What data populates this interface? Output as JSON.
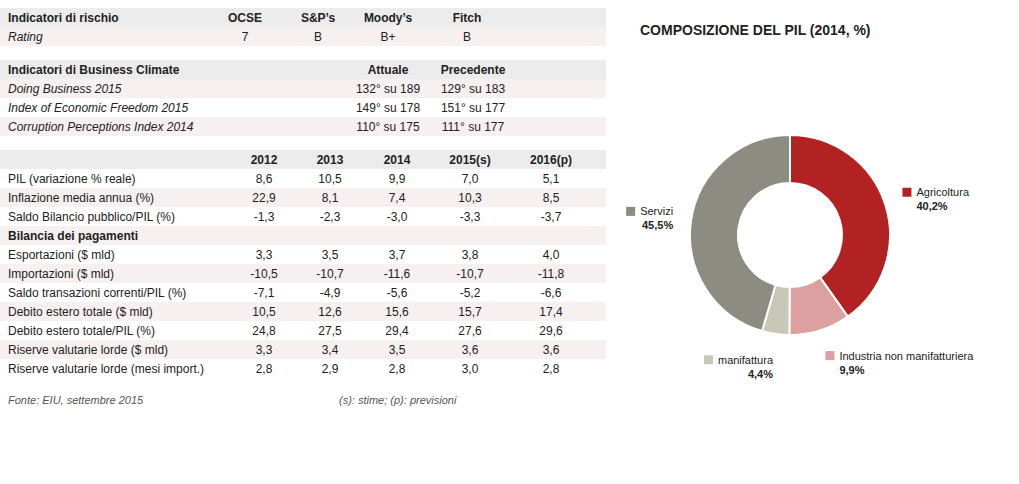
{
  "chart_data": [
    {
      "type": "table",
      "columns": [
        "Indicatori di rischio",
        "OCSE",
        "S&P’s",
        "Moody’s",
        "Fitch"
      ],
      "rows": [
        [
          "Rating",
          7,
          "B",
          "B+",
          "B"
        ]
      ]
    },
    {
      "type": "table",
      "columns": [
        "Indicatori di Business Climate",
        "Attuale",
        "Precedente"
      ],
      "rows": [
        [
          "Doing Business 2015",
          "132° su 189",
          "129° su 183"
        ],
        [
          "Index of Economic Freedom 2015",
          "149° su 178",
          "151° su 177"
        ],
        [
          "Corruption Perceptions Index 2014",
          "110° su 175",
          "111° su 177"
        ]
      ]
    },
    {
      "type": "table",
      "categories": [
        "2012",
        "2013",
        "2014",
        "2015(s)",
        "2016(p)"
      ],
      "series": [
        {
          "name": "PIL (variazione % reale)",
          "values": [
            8.6,
            10.5,
            9.9,
            7.0,
            5.1
          ],
          "value_labels": [
            "8,6",
            "10,5",
            "9,9",
            "7,0",
            "5,1"
          ]
        },
        {
          "name": "Inflazione media annua (%)",
          "values": [
            22.9,
            8.1,
            7.4,
            10.3,
            8.5
          ],
          "value_labels": [
            "22,9",
            "8,1",
            "7,4",
            "10,3",
            "8,5"
          ]
        },
        {
          "name": "Saldo Bilancio pubblico/PIL (%)",
          "values": [
            -1.3,
            -2.3,
            -3.0,
            -3.3,
            -3.7
          ],
          "value_labels": [
            "-1,3",
            "-2,3",
            "-3,0",
            "-3,3",
            "-3,7"
          ]
        },
        {
          "name": "Bilancia dei pagamenti",
          "values": [
            null,
            null,
            null,
            null,
            null
          ],
          "value_labels": [
            null,
            null,
            null,
            null,
            null
          ]
        },
        {
          "name": "Esportazioni ($ mld)",
          "values": [
            3.3,
            3.5,
            3.7,
            3.8,
            4.0
          ],
          "value_labels": [
            "3,3",
            "3,5",
            "3,7",
            "3,8",
            "4,0"
          ]
        },
        {
          "name": "Importazioni ($ mld)",
          "values": [
            -10.5,
            -10.7,
            -11.6,
            -10.7,
            -11.8
          ],
          "value_labels": [
            "-10,5",
            "-10,7",
            "-11,6",
            "-10,7",
            "-11,8"
          ]
        },
        {
          "name": "Saldo transazioni correnti/PIL (%)",
          "values": [
            -7.1,
            -4.9,
            -5.6,
            -5.2,
            -6.6
          ],
          "value_labels": [
            "-7,1",
            "-4,9",
            "-5,6",
            "-5,2",
            "-6,6"
          ]
        },
        {
          "name": "Debito estero totale ($ mld)",
          "values": [
            10.5,
            12.6,
            15.6,
            15.7,
            17.4
          ],
          "value_labels": [
            "10,5",
            "12,6",
            "15,6",
            "15,7",
            "17,4"
          ]
        },
        {
          "name": "Debito estero totale/PIL (%)",
          "values": [
            24.8,
            27.5,
            29.4,
            27.6,
            29.6
          ],
          "value_labels": [
            "24,8",
            "27,5",
            "29,4",
            "27,6",
            "29,6"
          ]
        },
        {
          "name": "Riserve valutarie lorde ($ mld)",
          "values": [
            3.3,
            3.4,
            3.5,
            3.6,
            3.6
          ],
          "value_labels": [
            "3,3",
            "3,4",
            "3,5",
            "3,6",
            "3,6"
          ]
        },
        {
          "name": "Riserve valutarie lorde (mesi import.)",
          "values": [
            2.8,
            2.9,
            2.8,
            3.0,
            2.8
          ],
          "value_labels": [
            "2,8",
            "2,9",
            "2,8",
            "3,0",
            "2,8"
          ]
        }
      ],
      "annotations": [
        "Fonte: EIU, settembre 2015",
        "(s): stime; (p): previsioni"
      ]
    },
    {
      "type": "donut",
      "title": "COMPOSIZIONE DEL PIL (2014, %)",
      "categories": [
        "Agricoltura",
        "Industria non manifatturiera",
        "manifattura",
        "Servizi"
      ],
      "values": [
        40.2,
        9.9,
        4.4,
        45.5
      ],
      "value_labels": [
        "40,2%",
        "9,9%",
        "4,4%",
        "45,5%"
      ],
      "colors": [
        "#b22222",
        "#dda0a0",
        "#c8c8b8",
        "#8c8c82"
      ]
    }
  ]
}
